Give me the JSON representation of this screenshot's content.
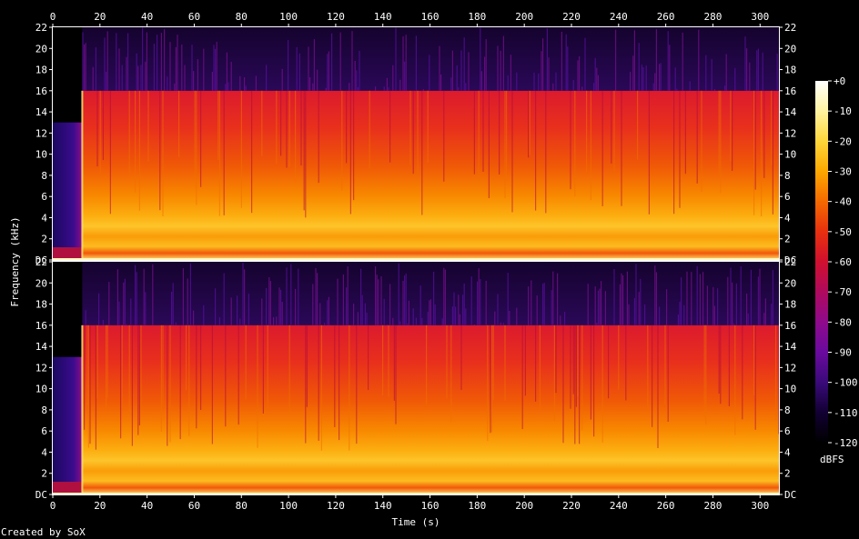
{
  "chart_data": {
    "type": "heatmap",
    "title": "",
    "xlabel": "Time (s)",
    "ylabel": "Frequency (kHz)",
    "xlim": [
      0,
      308
    ],
    "ylim": [
      0,
      22
    ],
    "x_ticks": [
      "0",
      "20",
      "40",
      "60",
      "80",
      "100",
      "120",
      "140",
      "160",
      "180",
      "200",
      "220",
      "240",
      "260",
      "280",
      "300"
    ],
    "y_ticks": [
      "DC",
      "2",
      "4",
      "6",
      "8",
      "10",
      "12",
      "14",
      "16",
      "18",
      "20",
      "22"
    ],
    "y_tick_values": [
      0,
      2,
      4,
      6,
      8,
      10,
      12,
      14,
      16,
      18,
      20,
      22
    ],
    "channels": 2,
    "colorbar": {
      "label": "dBFS",
      "ticks": [
        "+0",
        "-10",
        "-20",
        "-30",
        "-40",
        "-50",
        "-60",
        "-70",
        "-80",
        "-90",
        "-100",
        "-110",
        "-120"
      ],
      "range": [
        -120,
        0
      ],
      "colors": [
        "#000000",
        "#120032",
        "#3a0a7a",
        "#6a0a9e",
        "#8e0a8c",
        "#b00a5c",
        "#d0102e",
        "#e8300e",
        "#f56a00",
        "#fca800",
        "#fed63a",
        "#fff3a0",
        "#ffffff"
      ]
    },
    "series": [
      {
        "name": "",
        "audio_start_s": 12.5,
        "lowpass_khz": 16,
        "intro_band_khz": 13,
        "intro_end_s": 12
      }
    ],
    "footer": "Created by SoX"
  }
}
